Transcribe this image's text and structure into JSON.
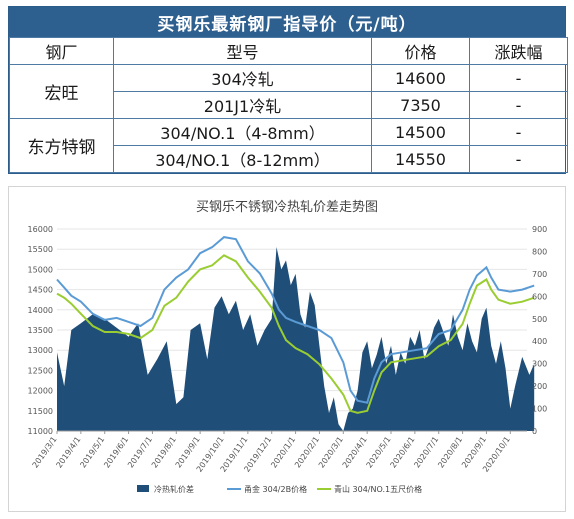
{
  "table": {
    "title": "买钢乐最新钢厂指导价（元/吨）",
    "headers": [
      "钢厂",
      "型号",
      "价格",
      "涨跌幅"
    ],
    "groups": [
      {
        "mill": "宏旺",
        "rows": [
          {
            "model": "304冷轧",
            "price": "14600",
            "change": "-"
          },
          {
            "model": "201J1冷轧",
            "price": "7350",
            "change": "-"
          }
        ]
      },
      {
        "mill": "东方特钢",
        "rows": [
          {
            "model": "304/NO.1（4-8mm）",
            "price": "14500",
            "change": "-"
          },
          {
            "model": "304/NO.1（8-12mm）",
            "price": "14550",
            "change": "-"
          }
        ]
      }
    ]
  },
  "chart_data": {
    "type": "area",
    "title": "买钢乐不锈钢冷热轧价差走势图",
    "x_ticks": [
      "2019/3/1",
      "2019/4/1",
      "2019/5/1",
      "2019/6/1",
      "2019/7/1",
      "2019/8/1",
      "2019/9/1",
      "2019/10/1",
      "2019/11/1",
      "2019/12/1",
      "2020/1/1",
      "2020/2/1",
      "2020/3/1",
      "2020/4/1",
      "2020/5/1",
      "2020/6/1",
      "2020/7/1",
      "2020/8/1",
      "2020/9/1",
      "2020/10/1"
    ],
    "y_left": {
      "min": 11000,
      "max": 16000,
      "ticks": [
        11000,
        11500,
        12000,
        12500,
        13000,
        13500,
        14000,
        14500,
        15000,
        15500,
        16000
      ]
    },
    "y_right": {
      "min": 0,
      "max": 900,
      "ticks": [
        0,
        100,
        200,
        300,
        400,
        500,
        600,
        700,
        800,
        900
      ]
    },
    "legend_position": "bottom",
    "colors": {
      "spread": "#1f4e79",
      "hongwang": "#5b9bd5",
      "qingshan": "#9acd32"
    },
    "series": [
      {
        "name": "冷热轧价差",
        "axis": "right",
        "style": "area",
        "x": [
          0,
          0.3,
          0.6,
          1,
          1.5,
          2,
          2.5,
          3,
          3.4,
          3.8,
          4.2,
          4.6,
          5,
          5.3,
          5.6,
          6,
          6.3,
          6.6,
          6.9,
          7.2,
          7.5,
          7.8,
          8.1,
          8.4,
          8.7,
          9,
          9.2,
          9.4,
          9.6,
          9.8,
          10,
          10.2,
          10.4,
          10.6,
          10.8,
          11,
          11.2,
          11.4,
          11.6,
          11.8,
          12,
          12.2,
          12.4,
          12.6,
          12.8,
          13,
          13.2,
          13.4,
          13.6,
          13.8,
          14,
          14.2,
          14.4,
          14.6,
          14.8,
          15,
          15.2,
          15.4,
          15.6,
          15.8,
          16,
          16.2,
          16.4,
          16.6,
          16.8,
          17,
          17.2,
          17.4,
          17.6,
          17.8,
          18,
          18.2,
          18.4,
          18.6,
          18.8,
          19,
          19.2,
          19.5,
          19.8,
          20
        ],
        "values": [
          350,
          200,
          450,
          480,
          520,
          500,
          460,
          420,
          480,
          250,
          320,
          400,
          120,
          150,
          450,
          480,
          320,
          550,
          600,
          520,
          580,
          450,
          520,
          380,
          450,
          500,
          820,
          720,
          760,
          650,
          700,
          520,
          460,
          620,
          560,
          380,
          200,
          80,
          150,
          30,
          0,
          80,
          100,
          180,
          350,
          400,
          280,
          340,
          420,
          300,
          380,
          250,
          350,
          300,
          420,
          380,
          450,
          320,
          380,
          460,
          500,
          440,
          380,
          520,
          420,
          360,
          480,
          400,
          350,
          500,
          550,
          380,
          300,
          400,
          280,
          100,
          200,
          330,
          250,
          300
        ]
      },
      {
        "name": "甬金 304/2B价格",
        "axis": "left",
        "style": "line",
        "x": [
          0,
          0.3,
          0.6,
          1,
          1.5,
          2,
          2.5,
          3,
          3.5,
          4,
          4.5,
          5,
          5.5,
          6,
          6.5,
          7,
          7.5,
          8,
          8.5,
          9,
          9.3,
          9.6,
          10,
          10.5,
          11,
          11.5,
          12,
          12.3,
          12.6,
          13,
          13.3,
          13.6,
          14,
          14.5,
          15,
          15.5,
          16,
          16.5,
          17,
          17.3,
          17.6,
          18,
          18.2,
          18.5,
          19,
          19.5,
          20
        ],
        "values": [
          14750,
          14550,
          14350,
          14200,
          13900,
          13750,
          13800,
          13700,
          13600,
          13800,
          14500,
          14800,
          15000,
          15400,
          15550,
          15800,
          15750,
          15200,
          14900,
          14400,
          14000,
          13800,
          13700,
          13600,
          13500,
          13300,
          12700,
          12000,
          11750,
          11700,
          12300,
          12700,
          12900,
          12950,
          13000,
          13050,
          13400,
          13500,
          14000,
          14500,
          14850,
          15050,
          14800,
          14500,
          14450,
          14500,
          14600
        ]
      },
      {
        "name": "青山 304/NO.1五尺价格",
        "axis": "left",
        "style": "line",
        "x": [
          0,
          0.3,
          0.6,
          1,
          1.5,
          2,
          2.5,
          3,
          3.5,
          4,
          4.5,
          5,
          5.5,
          6,
          6.5,
          7,
          7.5,
          8,
          8.5,
          9,
          9.3,
          9.6,
          10,
          10.5,
          11,
          11.5,
          12,
          12.3,
          12.6,
          13,
          13.3,
          13.6,
          14,
          14.5,
          15,
          15.5,
          16,
          16.5,
          17,
          17.3,
          17.6,
          18,
          18.2,
          18.5,
          19,
          19.5,
          20
        ],
        "values": [
          14400,
          14300,
          14150,
          13900,
          13600,
          13450,
          13450,
          13400,
          13300,
          13500,
          14100,
          14300,
          14700,
          15000,
          15100,
          15350,
          15200,
          14800,
          14450,
          14050,
          13600,
          13250,
          13050,
          12900,
          12650,
          12300,
          11900,
          11500,
          11450,
          11500,
          12000,
          12450,
          12700,
          12750,
          12800,
          12850,
          13100,
          13250,
          13650,
          14150,
          14600,
          14750,
          14500,
          14250,
          14150,
          14200,
          14300
        ]
      }
    ]
  }
}
